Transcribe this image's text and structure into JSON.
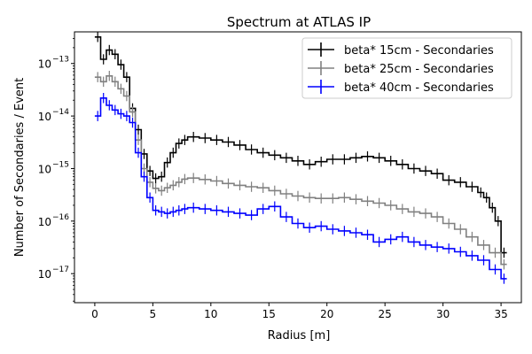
{
  "chart_data": {
    "type": "line",
    "title": "Spectrum at ATLAS IP",
    "xlabel": "Radius [m]",
    "ylabel": "Number of Secondaries / Event",
    "xlim": [
      -1.75,
      36.75
    ],
    "ylim": [
      2.8e-18,
      4e-13
    ],
    "yscale": "log",
    "x_ticks": [
      0,
      5,
      10,
      15,
      20,
      25,
      30,
      35
    ],
    "x_tick_labels": [
      "0",
      "5",
      "10",
      "15",
      "20",
      "25",
      "30",
      "35"
    ],
    "y_ticks": [
      1e-17,
      1e-16,
      1e-15,
      1e-14,
      1e-13
    ],
    "y_tick_labels": [
      [
        "10",
        "−17"
      ],
      [
        "10",
        "−16"
      ],
      [
        "10",
        "−15"
      ],
      [
        "10",
        "−14"
      ],
      [
        "10",
        "−13"
      ]
    ],
    "legend_position": "top-right",
    "grid": false,
    "series": [
      {
        "name": "beta* 15cm - Secondaries",
        "color": "#000000",
        "x": [
          0,
          0.5,
          1,
          1.5,
          2,
          2.5,
          3,
          3.5,
          4,
          4.5,
          5,
          5.5,
          6,
          6.5,
          7,
          7.5,
          8,
          9,
          10,
          11,
          12,
          13,
          14,
          15,
          16,
          17,
          18,
          19,
          20,
          21,
          22,
          23,
          24,
          25,
          26,
          27,
          28,
          29,
          30,
          31,
          32,
          33,
          33.5,
          34,
          34.5,
          35
        ],
        "y": [
          3.2e-13,
          1.2e-13,
          1.8e-13,
          1.5e-13,
          9.5e-14,
          5.5e-14,
          1.4e-14,
          5.5e-15,
          1.9e-15,
          9e-16,
          6.5e-16,
          7e-16,
          1.3e-15,
          2e-15,
          3e-15,
          3.5e-15,
          4e-15,
          3.8e-15,
          3.5e-15,
          3.2e-15,
          2.8e-15,
          2.3e-15,
          2e-15,
          1.8e-15,
          1.6e-15,
          1.4e-15,
          1.2e-15,
          1.35e-15,
          1.5e-15,
          1.5e-15,
          1.6e-15,
          1.7e-15,
          1.6e-15,
          1.4e-15,
          1.2e-15,
          1e-15,
          9e-16,
          8e-16,
          6e-16,
          5.5e-16,
          4.5e-16,
          3.5e-16,
          2.8e-16,
          1.8e-16,
          1e-16,
          2.5e-17
        ]
      },
      {
        "name": "beta* 25cm - Secondaries",
        "color": "#808080",
        "x": [
          0,
          0.5,
          1,
          1.5,
          2,
          2.5,
          3,
          3.5,
          4,
          4.5,
          5,
          5.5,
          6,
          6.5,
          7,
          7.5,
          8,
          9,
          10,
          11,
          12,
          13,
          14,
          15,
          16,
          17,
          18,
          19,
          20,
          21,
          22,
          23,
          24,
          25,
          26,
          27,
          28,
          29,
          30,
          31,
          32,
          33,
          34,
          35
        ],
        "y": [
          5.5e-14,
          4.5e-14,
          5.8e-14,
          4.5e-14,
          3.3e-14,
          2.4e-14,
          1.2e-14,
          3.5e-15,
          1e-15,
          5.5e-16,
          4.2e-16,
          3.8e-16,
          4.3e-16,
          4.8e-16,
          5.5e-16,
          6.3e-16,
          6.6e-16,
          6.2e-16,
          5.8e-16,
          5.2e-16,
          4.8e-16,
          4.5e-16,
          4.3e-16,
          3.8e-16,
          3.3e-16,
          3e-16,
          2.8e-16,
          2.7e-16,
          2.7e-16,
          2.8e-16,
          2.6e-16,
          2.4e-16,
          2.2e-16,
          2e-16,
          1.7e-16,
          1.5e-16,
          1.4e-16,
          1.2e-16,
          9e-17,
          7e-17,
          5e-17,
          3.5e-17,
          2.5e-17,
          1.5e-17
        ]
      },
      {
        "name": "beta* 40cm - Secondaries",
        "color": "#0000ff",
        "x": [
          0,
          0.5,
          1,
          1.5,
          2,
          2.5,
          3,
          3.5,
          4,
          4.5,
          5,
          5.5,
          6,
          6.5,
          7,
          7.5,
          8,
          9,
          10,
          11,
          12,
          13,
          14,
          15,
          16,
          17,
          18,
          19,
          20,
          21,
          22,
          23,
          24,
          25,
          26,
          27,
          28,
          29,
          30,
          31,
          32,
          33,
          34,
          35
        ],
        "y": [
          1e-14,
          2.2e-14,
          1.6e-14,
          1.3e-14,
          1.1e-14,
          1e-14,
          7.5e-15,
          2e-15,
          7e-16,
          2.8e-16,
          1.6e-16,
          1.5e-16,
          1.4e-16,
          1.5e-16,
          1.6e-16,
          1.7e-16,
          1.8e-16,
          1.7e-16,
          1.6e-16,
          1.5e-16,
          1.4e-16,
          1.3e-16,
          1.7e-16,
          1.9e-16,
          1.2e-16,
          9e-17,
          7.5e-17,
          8e-17,
          7e-17,
          6.5e-17,
          6e-17,
          5.5e-17,
          4e-17,
          4.5e-17,
          5e-17,
          4e-17,
          3.5e-17,
          3.2e-17,
          3e-17,
          2.6e-17,
          2.2e-17,
          1.8e-17,
          1.2e-17,
          8e-18
        ]
      }
    ]
  }
}
